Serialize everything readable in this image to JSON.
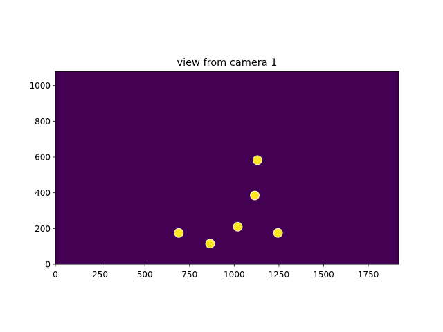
{
  "chart_data": {
    "type": "scatter",
    "title": "view from camera 1",
    "xlabel": "",
    "ylabel": "",
    "xlim": [
      0,
      1920
    ],
    "ylim": [
      0,
      1080
    ],
    "xticks": [
      0,
      250,
      500,
      750,
      1000,
      1250,
      1500,
      1750
    ],
    "yticks": [
      0,
      200,
      400,
      600,
      800,
      1000
    ],
    "grid": false,
    "background_color": "#440154",
    "marker_color": "#fde725",
    "marker_edge_color": "#ffffff",
    "points": [
      {
        "x": 690,
        "y": 175
      },
      {
        "x": 865,
        "y": 115
      },
      {
        "x": 1020,
        "y": 210
      },
      {
        "x": 1115,
        "y": 385
      },
      {
        "x": 1130,
        "y": 583
      },
      {
        "x": 1245,
        "y": 175
      }
    ]
  }
}
